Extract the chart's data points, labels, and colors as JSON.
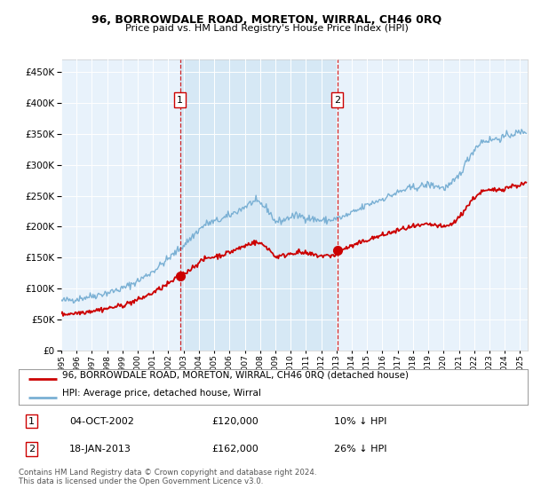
{
  "title": "96, BORROWDALE ROAD, MORETON, WIRRAL, CH46 0RQ",
  "subtitle": "Price paid vs. HM Land Registry's House Price Index (HPI)",
  "legend_line1": "96, BORROWDALE ROAD, MORETON, WIRRAL, CH46 0RQ (detached house)",
  "legend_line2": "HPI: Average price, detached house, Wirral",
  "annotation1_date": "04-OCT-2002",
  "annotation1_price": "£120,000",
  "annotation1_hpi": "10% ↓ HPI",
  "annotation2_date": "18-JAN-2013",
  "annotation2_price": "£162,000",
  "annotation2_hpi": "26% ↓ HPI",
  "footer": "Contains HM Land Registry data © Crown copyright and database right 2024.\nThis data is licensed under the Open Government Licence v3.0.",
  "sale1_year": 2002.77,
  "sale1_value": 120000,
  "sale2_year": 2013.05,
  "sale2_value": 162000,
  "price_line_color": "#cc0000",
  "hpi_line_color": "#7ab0d4",
  "shade_color": "#d6e8f5",
  "bg_color": "#e8f2fb",
  "ylim_min": 0,
  "ylim_max": 470000,
  "xlim_min": 1995,
  "xlim_max": 2025.5
}
